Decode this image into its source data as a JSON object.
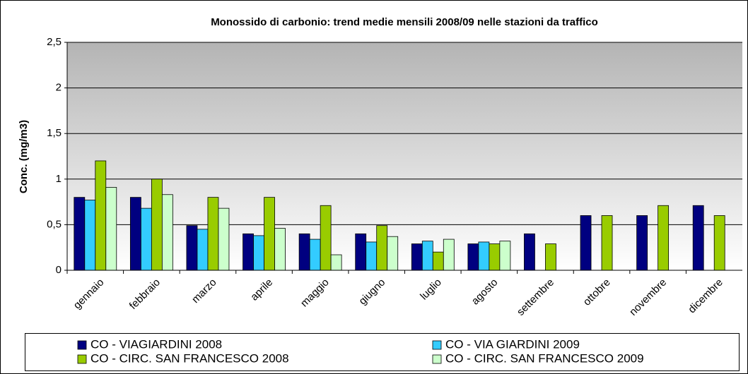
{
  "chart_data": {
    "type": "bar",
    "title": "Monossido di carbonio: trend medie mensili 2008/09 nelle stazioni da traffico",
    "y_label": "Conc. (mg/m3)",
    "categories": [
      "gennaio",
      "febbraio",
      "marzo",
      "aprile",
      "maggio",
      "giugno",
      "luglio",
      "agosto",
      "settembre",
      "ottobre",
      "novembre",
      "dicembre"
    ],
    "series": [
      {
        "name": "CO - VIAGIARDINI 2008",
        "color": "#000080",
        "values": [
          0.8,
          0.8,
          0.49,
          0.4,
          0.4,
          0.4,
          0.29,
          0.29,
          0.4,
          0.6,
          0.6,
          0.71
        ]
      },
      {
        "name": "CO - VIA GIARDINI 2009",
        "color": "#33ccff",
        "values": [
          0.77,
          0.68,
          0.45,
          0.38,
          0.34,
          0.31,
          0.32,
          0.31,
          null,
          null,
          null,
          null
        ]
      },
      {
        "name": "CO - CIRC. SAN FRANCESCO 2008",
        "color": "#99cc00",
        "values": [
          1.2,
          1.0,
          0.8,
          0.8,
          0.71,
          0.49,
          0.2,
          0.29,
          0.29,
          0.6,
          0.71,
          0.6
        ]
      },
      {
        "name": "CO - CIRC. SAN FRANCESCO 2009",
        "color": "#ccffcc",
        "values": [
          0.91,
          0.83,
          0.68,
          0.46,
          0.17,
          0.37,
          0.34,
          0.32,
          null,
          null,
          null,
          null
        ]
      }
    ],
    "ylim": [
      0,
      2.5
    ],
    "yticks": [
      0,
      {
        "value": 0.5,
        "label": "0,5"
      },
      1,
      {
        "value": 1.5,
        "label": "1,5"
      },
      2,
      {
        "value": 2.5,
        "label": "2,5"
      }
    ],
    "grid": true,
    "legend": "bottom"
  }
}
